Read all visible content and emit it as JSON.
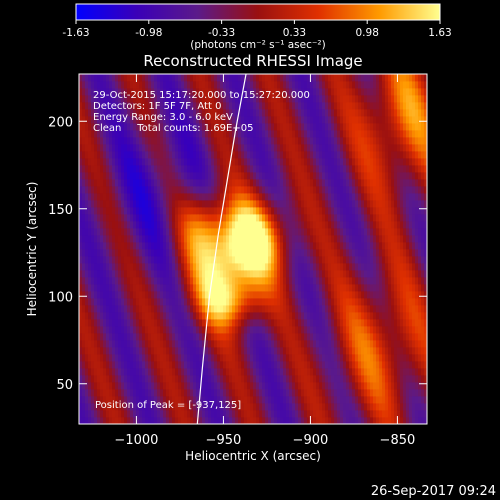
{
  "colorbar": {
    "min": -1.63,
    "max": 1.63,
    "ticks": [
      "-1.63",
      "-0.98",
      "-0.33",
      "0.33",
      "0.98",
      "1.63"
    ],
    "unit_label": "(photons cm⁻² s⁻¹ asec⁻²)",
    "colors": [
      "#0000ff",
      "#3a00b8",
      "#5b1a8a",
      "#9a1010",
      "#e03000",
      "#ff9a00",
      "#ffff90"
    ]
  },
  "plot": {
    "title": "Reconstructed RHESSI Image",
    "info_lines": [
      "29-Oct-2015 15:17:20.000 to 15:27:20.000",
      "Detectors: 1F 5F 7F, Att 0",
      "Energy Range: 3.0 - 6.0 keV",
      "Clean     Total counts: 1.69E+05"
    ],
    "peak_label": "Position of Peak = [-937,125]",
    "footer_date": "26-Sep-2017 09:24"
  },
  "chart_data": {
    "type": "heatmap",
    "title": "Reconstructed RHESSI Image",
    "xlabel": "Heliocentric X (arcsec)",
    "ylabel": "Heliocentric Y (arcsec)",
    "xlim": [
      -1033,
      -833
    ],
    "ylim": [
      27,
      227
    ],
    "xticks": [
      -1000,
      -950,
      -900,
      -850
    ],
    "yticks": [
      50,
      100,
      150,
      200
    ],
    "xtick_labels": [
      "−1000",
      "−950",
      "−900",
      "−850"
    ],
    "ytick_labels": [
      "50",
      "100",
      "150",
      "200"
    ],
    "peak": [
      -937,
      125
    ],
    "limb_curve": [
      [
        -965,
        27
      ],
      [
        -962,
        60
      ],
      [
        -958,
        100
      ],
      [
        -953,
        135
      ],
      [
        -948,
        165
      ],
      [
        -943,
        195
      ],
      [
        -937,
        227
      ]
    ]
  }
}
